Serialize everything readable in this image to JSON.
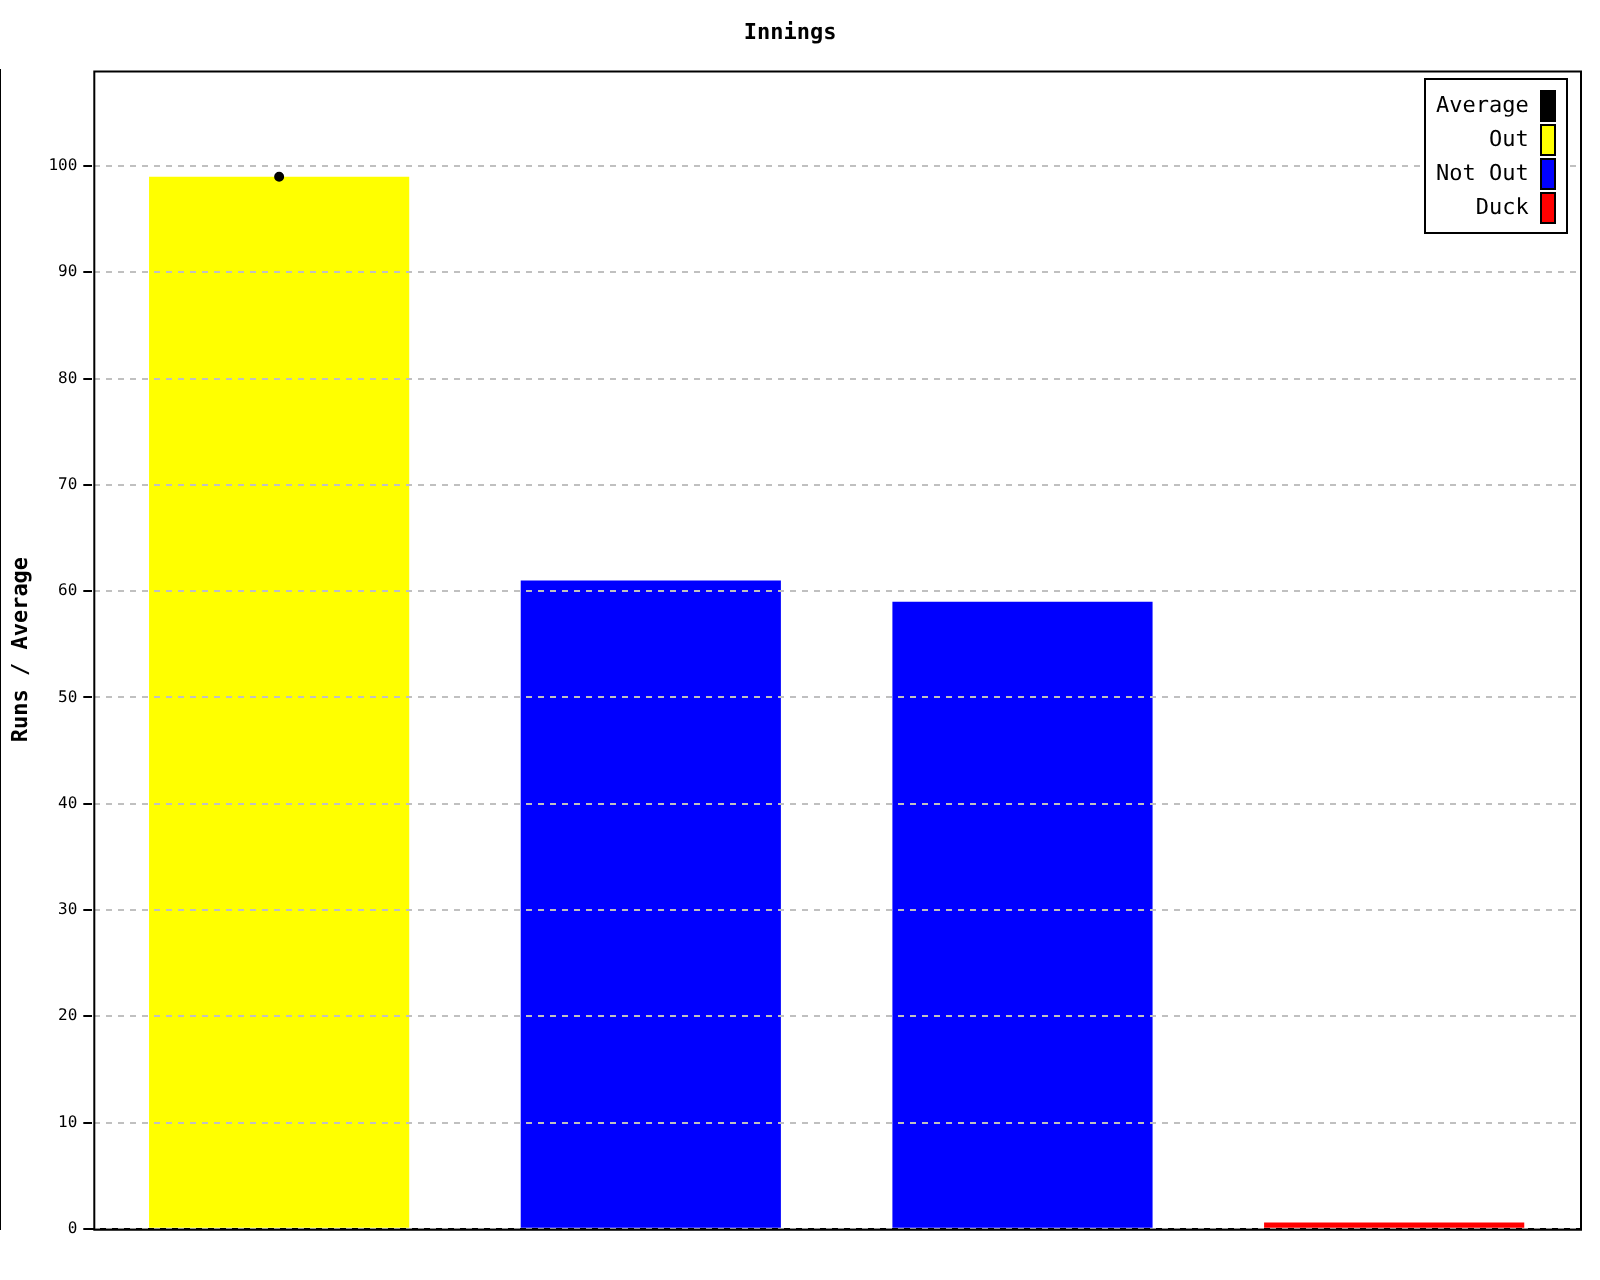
{
  "chart_data": {
    "type": "bar",
    "title": "Innings",
    "ylabel": "Runs / Average",
    "categories": [
      null,
      null,
      null,
      null
    ],
    "series": [
      {
        "name": "Average",
        "type": "line",
        "color": "#000000",
        "marker": "circle",
        "values": [
          99,
          null,
          null,
          null
        ]
      },
      {
        "name": "Out",
        "color": "#ffff00",
        "values": [
          99,
          null,
          null,
          null
        ]
      },
      {
        "name": "Not Out",
        "color": "#0000ff",
        "values": [
          null,
          61,
          59,
          null
        ]
      },
      {
        "name": "Duck",
        "color": "#ff0000",
        "values": [
          null,
          null,
          null,
          0.6
        ]
      }
    ],
    "ylim": [
      0,
      109
    ],
    "yticks": [
      0,
      10,
      20,
      30,
      40,
      50,
      60,
      70,
      80,
      90,
      100
    ],
    "grid": "y",
    "legend": "top right"
  }
}
